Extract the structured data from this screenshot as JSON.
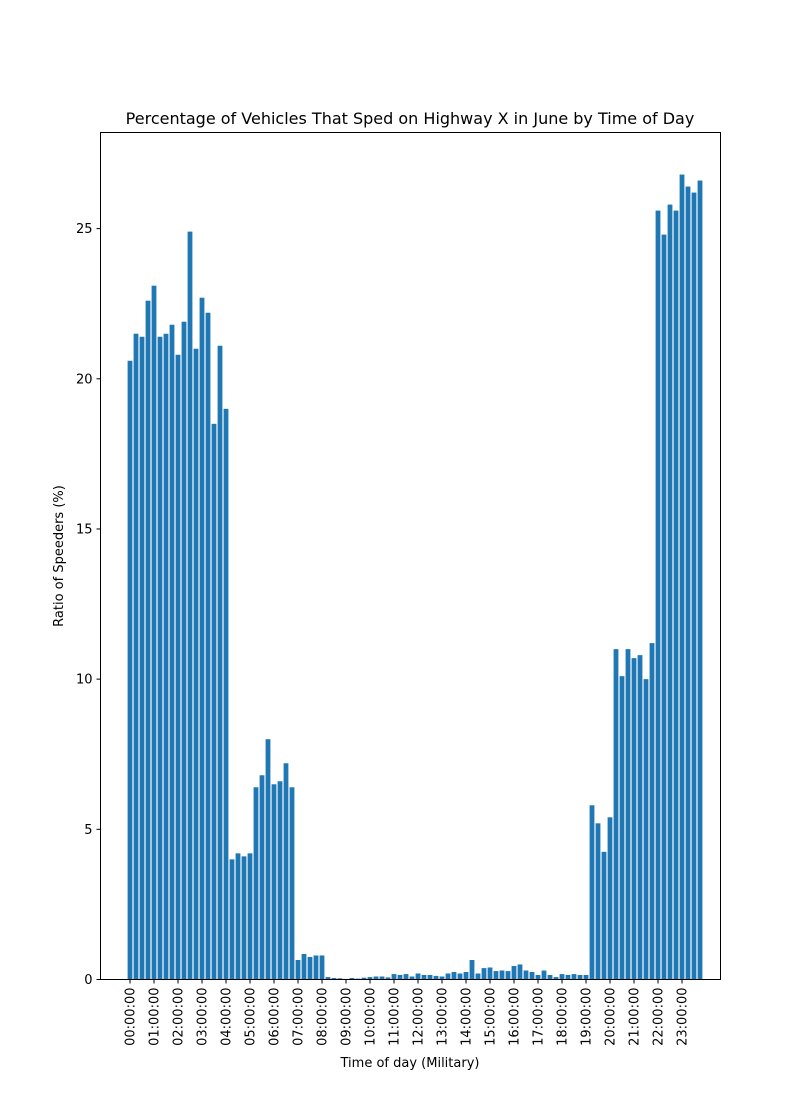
{
  "chart_data": {
    "type": "bar",
    "title": "Percentage of Vehicles That Sped on Highway X in June by Time of Day",
    "xlabel": "Time of day (Military)",
    "ylabel": "Ratio of Speeders (%)",
    "ylim": [
      0,
      28.2
    ],
    "yticks": [
      0,
      5,
      10,
      15,
      20,
      25
    ],
    "grid": false,
    "color": "#1f77b4",
    "bar_interval_minutes": 15,
    "xtick_labels": [
      "00:00:00",
      "01:00:00",
      "02:00:00",
      "03:00:00",
      "04:00:00",
      "05:00:00",
      "06:00:00",
      "07:00:00",
      "08:00:00",
      "09:00:00",
      "10:00:00",
      "11:00:00",
      "12:00:00",
      "13:00:00",
      "14:00:00",
      "15:00:00",
      "16:00:00",
      "17:00:00",
      "18:00:00",
      "19:00:00",
      "20:00:00",
      "21:00:00",
      "22:00:00",
      "23:00:00"
    ],
    "values": [
      20.6,
      21.5,
      21.4,
      22.6,
      23.1,
      21.4,
      21.5,
      21.8,
      20.8,
      21.9,
      24.9,
      21.0,
      22.7,
      22.2,
      18.5,
      21.1,
      19.0,
      4.0,
      4.2,
      4.1,
      4.2,
      6.4,
      6.8,
      8.0,
      6.5,
      6.6,
      7.2,
      6.4,
      0.65,
      0.85,
      0.75,
      0.8,
      0.8,
      0.08,
      0.05,
      0.04,
      0.02,
      0.05,
      0.03,
      0.06,
      0.08,
      0.1,
      0.1,
      0.07,
      0.18,
      0.15,
      0.18,
      0.1,
      0.2,
      0.15,
      0.15,
      0.12,
      0.1,
      0.2,
      0.25,
      0.2,
      0.25,
      0.65,
      0.2,
      0.38,
      0.4,
      0.28,
      0.3,
      0.28,
      0.45,
      0.5,
      0.3,
      0.25,
      0.15,
      0.3,
      0.15,
      0.08,
      0.18,
      0.15,
      0.18,
      0.15,
      0.15,
      5.8,
      5.2,
      4.25,
      5.4,
      11.0,
      10.1,
      11.0,
      10.7,
      10.8,
      10.0,
      11.2,
      25.6,
      24.8,
      25.8,
      25.6,
      26.8,
      26.4,
      26.2,
      26.6
    ]
  }
}
